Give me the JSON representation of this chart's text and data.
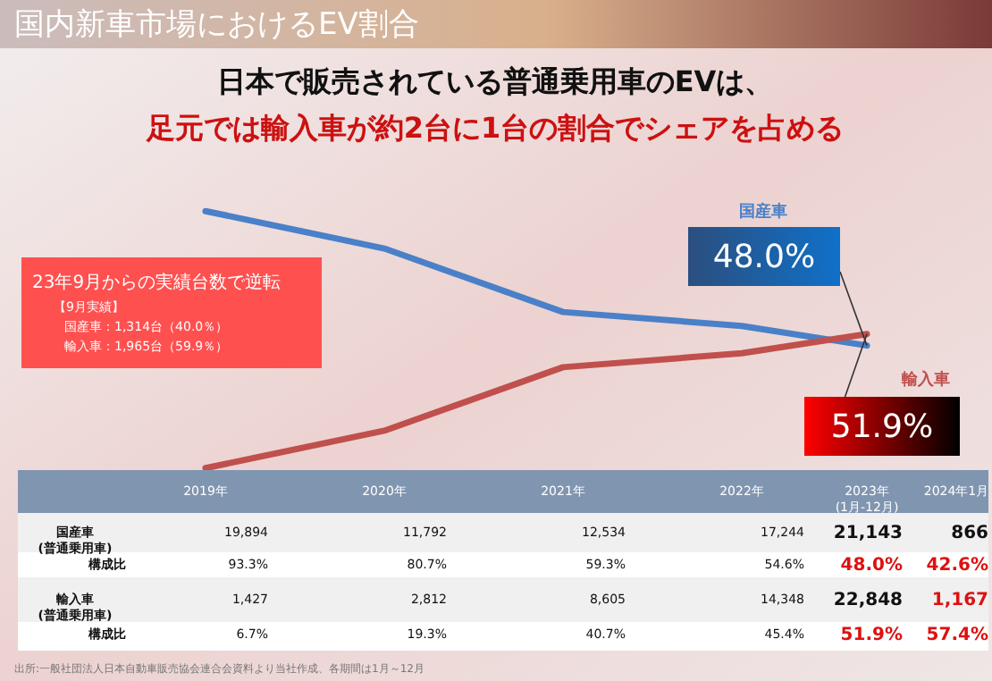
{
  "chart_data": {
    "type": "line",
    "title": "国内新車市場におけるEV割合",
    "subtitle": "日本で販売されている普通乗用車のEVは、",
    "categories": [
      "2019年",
      "2020年",
      "2021年",
      "2022年",
      "2023年(1月-12月)",
      "2024年1月"
    ],
    "series": [
      {
        "name": "国産車",
        "color": "#4a80c8",
        "values": [
          93.3,
          80.7,
          59.3,
          54.6,
          48.0,
          null
        ],
        "value_labels": [
          "93.3%",
          "80.7%",
          "59.3%",
          "54.6%",
          "48.0%",
          "42.6%"
        ]
      },
      {
        "name": "輸入車",
        "color": "#c0504d",
        "values": [
          6.7,
          19.3,
          40.7,
          45.4,
          51.9,
          null
        ],
        "value_labels": [
          "6.7%",
          "19.3%",
          "40.7%",
          "45.4%",
          "51.9%",
          "57.4%"
        ]
      }
    ],
    "annotations": [
      "23年9月からの実績台数で逆転",
      "【9月実績】",
      "国産車：1,314台（40.0％）",
      "輸入車：1,965台（59.9％）",
      "48.0%",
      "51.9%",
      "国産車(普通乗用車)",
      "19,894",
      "11,792",
      "12,534",
      "17,244",
      "21,143",
      "866",
      "構成比",
      "輸入車(普通乗用車)",
      "1,427",
      "2,812",
      "8,605",
      "14,348",
      "22,848",
      "1,167",
      "構成比",
      "出所:一般社団法人日本自動車販売協会連合会資料より当社作成、各期間は1月～12月",
      "足元では輸入車が約2台に1台の割合でシェアを占める"
    ]
  }
}
